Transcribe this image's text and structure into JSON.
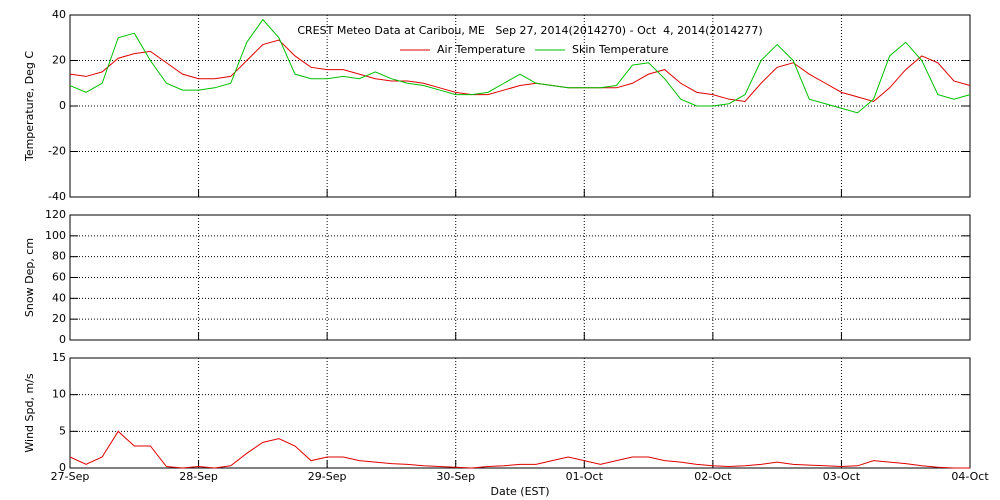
{
  "chart_data": [
    {
      "type": "line",
      "title": "CREST Meteo Data at Caribou, ME   Sep 27, 2014(2014270) - Oct  4, 2014(2014277)",
      "ylabel": "Temperature, Deg C",
      "ylim": [
        -40,
        40
      ],
      "yticks": [
        -40,
        -20,
        0,
        20,
        40
      ],
      "grid": true,
      "xlim": [
        0,
        7
      ],
      "x": [
        0,
        0.125,
        0.25,
        0.375,
        0.5,
        0.625,
        0.75,
        0.875,
        1,
        1.125,
        1.25,
        1.375,
        1.5,
        1.625,
        1.75,
        1.875,
        2,
        2.125,
        2.25,
        2.375,
        2.5,
        2.625,
        2.75,
        2.875,
        3,
        3.125,
        3.25,
        3.375,
        3.5,
        3.625,
        3.75,
        3.875,
        4,
        4.125,
        4.25,
        4.375,
        4.5,
        4.625,
        4.75,
        4.875,
        5,
        5.125,
        5.25,
        5.375,
        5.5,
        5.625,
        5.75,
        5.875,
        6,
        6.125,
        6.25,
        6.375,
        6.5,
        6.625,
        6.75,
        6.875,
        7
      ],
      "series": [
        {
          "name": "Air Temperature",
          "color": "#e00000",
          "values": [
            14,
            13,
            15,
            21,
            23,
            24,
            19,
            14,
            12,
            12,
            13,
            20,
            27,
            29,
            22,
            17,
            16,
            16,
            14,
            12,
            11,
            11,
            10,
            8,
            6,
            5,
            5,
            7,
            9,
            10,
            9,
            8,
            8,
            8,
            8,
            10,
            14,
            16,
            10,
            6,
            5,
            3,
            2,
            10,
            17,
            19,
            14,
            10,
            6,
            4,
            2,
            8,
            16,
            22,
            19,
            11,
            9
          ]
        },
        {
          "name": "Skin Temperature",
          "color": "#00c000",
          "values": [
            9,
            6,
            10,
            30,
            32,
            20,
            10,
            7,
            7,
            8,
            10,
            28,
            38,
            30,
            14,
            12,
            12,
            13,
            12,
            15,
            12,
            10,
            9,
            7,
            5,
            5,
            6,
            10,
            14,
            10,
            9,
            8,
            8,
            8,
            9,
            18,
            19,
            12,
            3,
            0,
            0,
            1,
            5,
            20,
            27,
            20,
            3,
            1,
            -1,
            -3,
            3,
            22,
            28,
            20,
            5,
            3,
            5
          ]
        }
      ]
    },
    {
      "type": "line",
      "ylabel": "Snow Dep, cm",
      "ylim": [
        0,
        120
      ],
      "yticks": [
        0,
        20,
        40,
        60,
        80,
        100,
        120
      ],
      "grid": true,
      "xlim": [
        0,
        7
      ]
    },
    {
      "type": "line",
      "ylabel": "Wind Spd, m/s",
      "xlabel": "Date (EST)",
      "ylim": [
        0,
        15
      ],
      "yticks": [
        0,
        5,
        10,
        15
      ],
      "grid": true,
      "xlim": [
        0,
        7
      ],
      "xticks": [
        {
          "value": 0,
          "label": "27-Sep"
        },
        {
          "value": 1,
          "label": "28-Sep"
        },
        {
          "value": 2,
          "label": "29-Sep"
        },
        {
          "value": 3,
          "label": "30-Sep"
        },
        {
          "value": 4,
          "label": "01-Oct"
        },
        {
          "value": 5,
          "label": "02-Oct"
        },
        {
          "value": 6,
          "label": "03-Oct"
        },
        {
          "value": 7,
          "label": "04-Oct"
        }
      ],
      "x": [
        0,
        0.125,
        0.25,
        0.375,
        0.5,
        0.625,
        0.75,
        0.875,
        1,
        1.125,
        1.25,
        1.375,
        1.5,
        1.625,
        1.75,
        1.875,
        2,
        2.125,
        2.25,
        2.375,
        2.5,
        2.625,
        2.75,
        2.875,
        3,
        3.125,
        3.25,
        3.375,
        3.5,
        3.625,
        3.75,
        3.875,
        4,
        4.125,
        4.25,
        4.375,
        4.5,
        4.625,
        4.75,
        4.875,
        5,
        5.125,
        5.25,
        5.375,
        5.5,
        5.625,
        5.75,
        5.875,
        6,
        6.125,
        6.25,
        6.375,
        6.5,
        6.625,
        6.75,
        6.875,
        7
      ],
      "series": [
        {
          "color": "#e00000",
          "values": [
            1.5,
            0.5,
            1.5,
            5,
            3,
            3,
            0.2,
            0,
            0.2,
            0,
            0.3,
            2,
            3.5,
            4,
            3,
            1,
            1.5,
            1.5,
            1,
            0.8,
            0.6,
            0.5,
            0.3,
            0.2,
            0.1,
            0,
            0.2,
            0.3,
            0.5,
            0.5,
            1,
            1.5,
            1,
            0.5,
            1,
            1.5,
            1.5,
            1,
            0.8,
            0.5,
            0.3,
            0.2,
            0.3,
            0.5,
            0.8,
            0.5,
            0.4,
            0.3,
            0.2,
            0.3,
            1,
            0.8,
            0.6,
            0.3,
            0.1,
            0,
            0
          ]
        }
      ]
    }
  ]
}
